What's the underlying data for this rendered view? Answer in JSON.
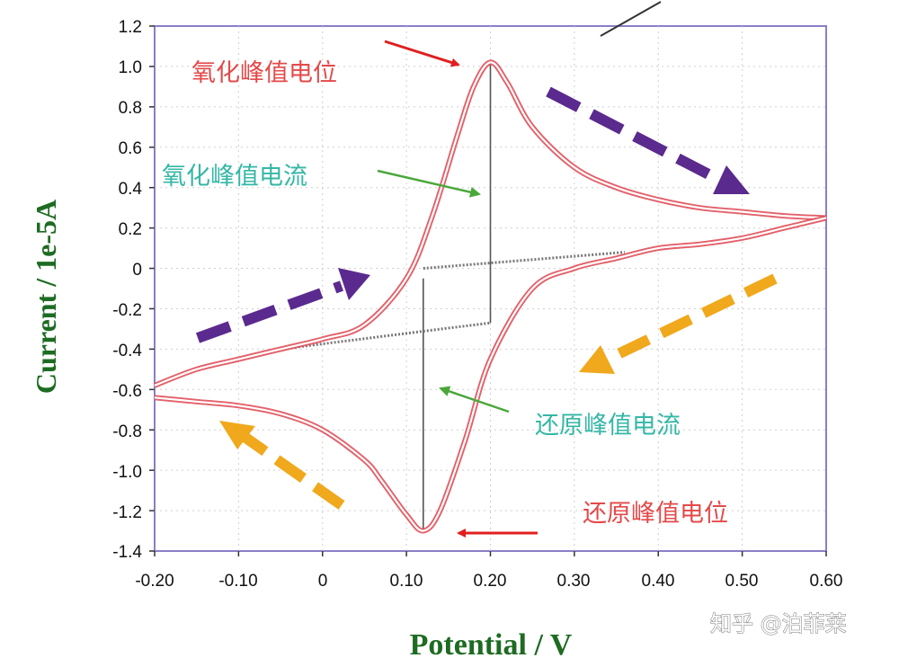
{
  "chart_data": {
    "type": "line",
    "xlabel": "Potential / V",
    "ylabel": "Current / 1e-5A",
    "xlim": [
      -0.2,
      0.6
    ],
    "ylim": [
      -1.4,
      1.2
    ],
    "x_ticks": [
      "-0.20",
      "-0.10",
      "0",
      "0.10",
      "0.20",
      "0.30",
      "0.40",
      "0.50",
      "0.60"
    ],
    "y_ticks": [
      "1.2",
      "1.0",
      "0.8",
      "0.6",
      "0.4",
      "0.2",
      "0",
      "-0.2",
      "-0.4",
      "-0.6",
      "-0.8",
      "-1.0",
      "-1.2",
      "-1.4"
    ],
    "grid": true,
    "series": [
      {
        "role": "forward_scan",
        "color": "#e0505a",
        "x": [
          -0.2,
          -0.15,
          -0.1,
          -0.05,
          0.0,
          0.05,
          0.1,
          0.13,
          0.16,
          0.18,
          0.2,
          0.22,
          0.25,
          0.3,
          0.35,
          0.4,
          0.45,
          0.5,
          0.55,
          0.6
        ],
        "y": [
          -0.58,
          -0.5,
          -0.45,
          -0.4,
          -0.35,
          -0.28,
          -0.05,
          0.25,
          0.65,
          0.9,
          1.02,
          0.92,
          0.7,
          0.5,
          0.4,
          0.34,
          0.3,
          0.28,
          0.26,
          0.25
        ]
      },
      {
        "role": "reverse_scan",
        "color": "#e0505a",
        "x": [
          0.6,
          0.55,
          0.5,
          0.45,
          0.4,
          0.35,
          0.3,
          0.25,
          0.2,
          0.17,
          0.14,
          0.12,
          0.1,
          0.07,
          0.05,
          0.0,
          -0.05,
          -0.1,
          -0.15,
          -0.2
        ],
        "y": [
          0.25,
          0.2,
          0.15,
          0.12,
          0.1,
          0.05,
          0.0,
          -0.1,
          -0.45,
          -0.85,
          -1.2,
          -1.3,
          -1.22,
          -1.05,
          -0.95,
          -0.8,
          -0.72,
          -0.68,
          -0.66,
          -0.64
        ]
      }
    ],
    "peak_guides": {
      "oxidation": {
        "potential": 0.2,
        "current_top": 1.02,
        "current_base": -0.27
      },
      "reduction": {
        "potential": 0.12,
        "current_bottom": -1.3,
        "current_base": -0.05
      }
    },
    "annotations": [
      {
        "text": "氧化峰值电位",
        "color": "#e34a4a"
      },
      {
        "text": "氧化峰值电流",
        "color": "#36b7a6"
      },
      {
        "text": "还原峰值电流",
        "color": "#36b7a6"
      },
      {
        "text": "还原峰值电位",
        "color": "#e34a4a"
      }
    ],
    "scan_arrow_colors": {
      "forward": "#5b2a8e",
      "reverse": "#f0a81c",
      "pointer_oxidation": "#e02020",
      "pointer_current": "#4aa83a"
    }
  },
  "watermark": "知乎 @泊菲莱"
}
